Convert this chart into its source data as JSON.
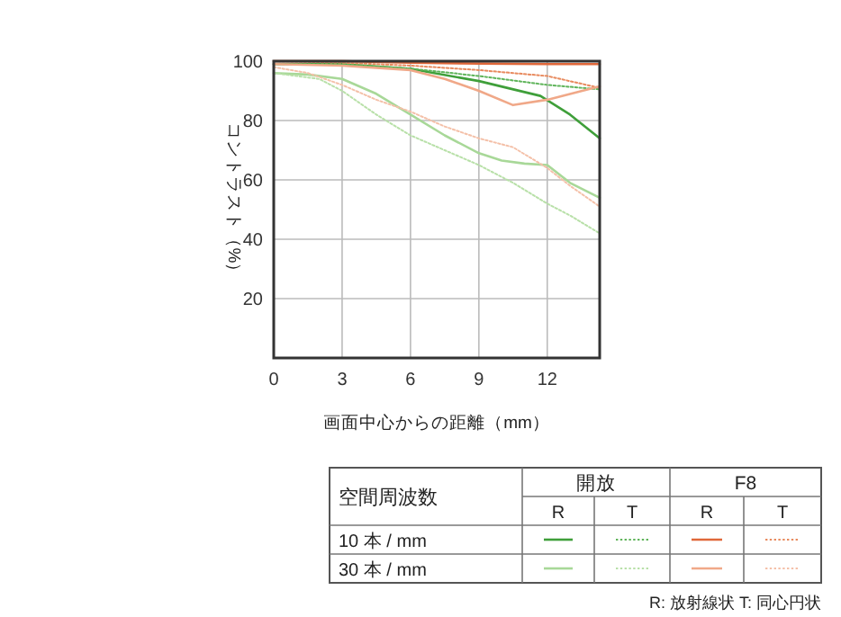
{
  "chart_data": {
    "type": "line",
    "xlabel": "画面中心からの距離（mm）",
    "ylabel": "コントラスト（%）",
    "xlim": [
      0,
      14.3
    ],
    "ylim": [
      0,
      100
    ],
    "xticks": [
      0,
      3,
      6,
      9,
      12
    ],
    "yticks": [
      20,
      40,
      60,
      80,
      100
    ],
    "grid": true,
    "legend_title": "空間周波数",
    "series": [
      {
        "color": "#3f9f3a",
        "line_style": "solid",
        "x": [
          0,
          3,
          6,
          9,
          11.7,
          13,
          14.3
        ],
        "values": [
          99,
          99,
          97.4,
          93.3,
          88.3,
          82,
          74
        ]
      },
      {
        "color": "#5fb45a",
        "line_style": "dotted",
        "x": [
          0,
          3,
          6,
          9,
          12,
          14.3
        ],
        "values": [
          99,
          99,
          97.5,
          95,
          92,
          90.5
        ]
      },
      {
        "color": "#e0683a",
        "line_style": "solid",
        "x": [
          0,
          3,
          6,
          9,
          12,
          14.3
        ],
        "values": [
          100,
          100,
          99.5,
          99.2,
          99,
          99
        ]
      },
      {
        "color": "#e88a5e",
        "line_style": "dotted",
        "x": [
          0,
          3,
          6,
          9,
          12,
          14.3
        ],
        "values": [
          100,
          99.5,
          98.5,
          97,
          95,
          91
        ]
      },
      {
        "color": "#a8d898",
        "line_style": "solid",
        "x": [
          0,
          1.5,
          3,
          4.5,
          6,
          7.5,
          9,
          10,
          11,
          12,
          13,
          14.3
        ],
        "values": [
          96,
          95.5,
          94,
          89,
          82,
          75,
          69,
          66.5,
          65.5,
          65,
          59,
          54
        ]
      },
      {
        "color": "#b8e0a8",
        "line_style": "dotted",
        "x": [
          0,
          2,
          3,
          4.5,
          6,
          7.5,
          9,
          10.5,
          12,
          13,
          14.3
        ],
        "values": [
          96,
          94,
          90,
          82,
          75,
          70,
          65,
          59,
          52,
          48,
          42
        ]
      },
      {
        "color": "#f0a888",
        "line_style": "solid",
        "x": [
          0,
          3,
          6,
          7.5,
          9,
          10.5,
          12,
          14.3
        ],
        "values": [
          99,
          98.5,
          97,
          94,
          90,
          85.2,
          87,
          91.5
        ]
      },
      {
        "color": "#f4c0a8",
        "line_style": "dotted",
        "x": [
          0,
          1.5,
          3,
          4.5,
          6,
          7.5,
          9,
          10.5,
          12,
          13,
          14.3
        ],
        "values": [
          98,
          96,
          92,
          87,
          83,
          78,
          74,
          71,
          64,
          58,
          51
        ]
      }
    ],
    "annotations": [
      "開放",
      "F8",
      "R",
      "T",
      "R",
      "T",
      "10 本 / mm",
      "30 本 / mm",
      "R: 放射線状  T: 同心円状"
    ]
  }
}
